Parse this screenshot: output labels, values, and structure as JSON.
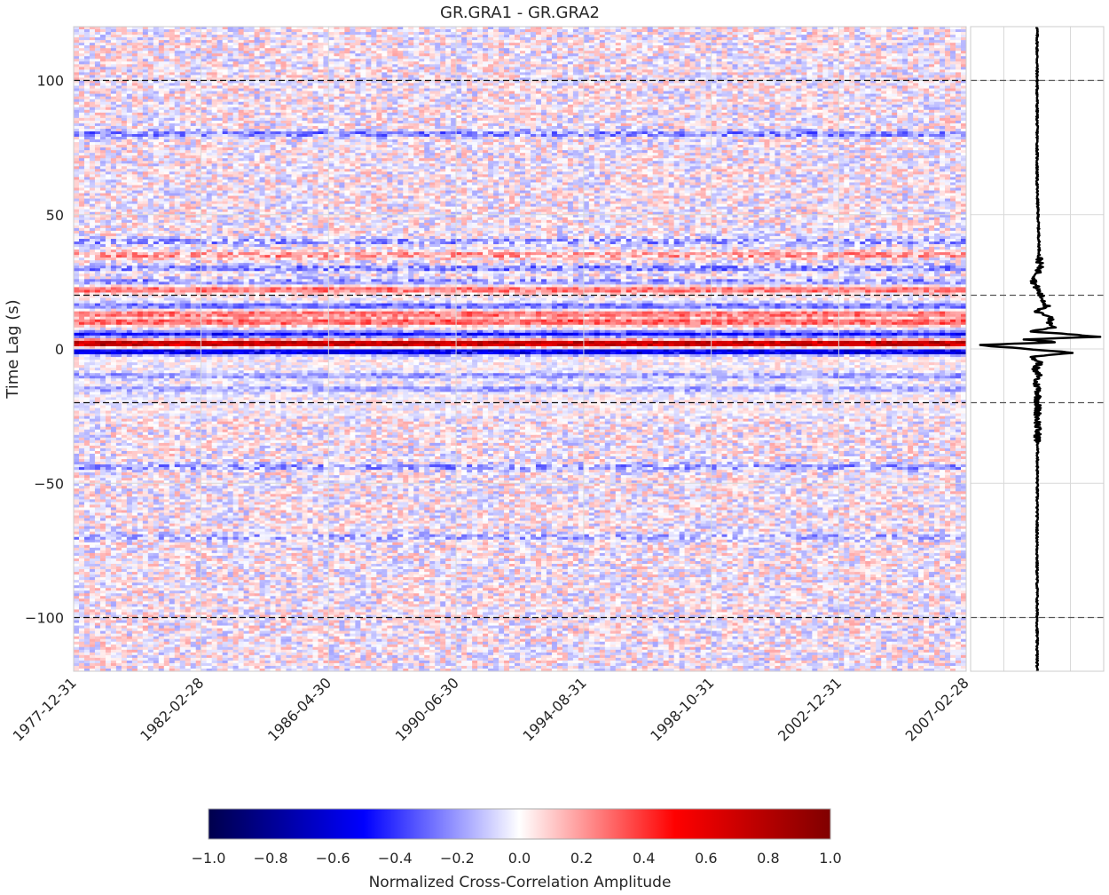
{
  "chart_data": [
    {
      "type": "heatmap",
      "title": "GR.GRA1 - GR.GRA2",
      "xlabel": "",
      "ylabel": "Time Lag (s)",
      "x_tick_labels": [
        "1977-12-31",
        "1982-02-28",
        "1986-04-30",
        "1990-06-30",
        "1994-08-31",
        "1998-10-31",
        "2002-12-31",
        "2007-02-28"
      ],
      "x_range": [
        "1977-12-31",
        "2007-02-28"
      ],
      "ylim": [
        -120,
        120
      ],
      "y_ticks": [
        100,
        50,
        0,
        -50,
        -100
      ],
      "y_tick_labels": [
        "100",
        "50",
        "0",
        "−50",
        "−100"
      ],
      "reference_lines_y": [
        100,
        20,
        -20,
        -100
      ],
      "grid": true,
      "colormap": "seismic",
      "color_range": [
        -1.0,
        1.0
      ],
      "bands": [
        {
          "lag": 2,
          "value": 0.85
        },
        {
          "lag": -1,
          "value": -0.65
        },
        {
          "lag": 5.5,
          "value": -0.45
        },
        {
          "lag": 10,
          "value": 0.35
        },
        {
          "lag": 13,
          "value": 0.3
        },
        {
          "lag": 16,
          "value": -0.3
        },
        {
          "lag": 22,
          "value": 0.3
        },
        {
          "lag": 25,
          "value": -0.2
        },
        {
          "lag": 30,
          "value": -0.25
        },
        {
          "lag": 35,
          "value": 0.2
        },
        {
          "lag": 40,
          "value": -0.2
        },
        {
          "lag": 80,
          "value": -0.25
        },
        {
          "lag": -10,
          "value": -0.2
        },
        {
          "lag": -15,
          "value": -0.2
        },
        {
          "lag": -44,
          "value": -0.2
        },
        {
          "lag": -70,
          "value": -0.15
        }
      ]
    },
    {
      "type": "line",
      "description_series": "stacked reference cross-correlation",
      "x_range": [
        -1,
        1
      ],
      "ylim": [
        -120,
        120
      ],
      "reference_lines_y": [
        100,
        20,
        -20,
        -100
      ],
      "y_ticks": [
        100,
        50,
        0,
        -50,
        -100
      ],
      "series": [
        {
          "lag": [
            -120,
            -60,
            -20,
            -15,
            -12,
            -10,
            -8,
            -5,
            -3,
            -1.5,
            -0.5,
            0.5,
            1.5,
            2.5,
            3.5,
            4.5,
            5.5,
            6.5,
            8,
            10,
            12,
            14,
            16,
            20,
            25,
            30,
            60,
            120
          ],
          "amplitude": [
            0,
            0,
            0.01,
            0.02,
            -0.03,
            0.04,
            -0.05,
            0.05,
            -0.1,
            0.55,
            0.1,
            -0.4,
            -0.9,
            0.3,
            -0.2,
            0.9,
            0.5,
            -0.1,
            0.25,
            0.18,
            0.22,
            -0.05,
            0.15,
            0.05,
            -0.05,
            0.04,
            0.0,
            0.0
          ]
        }
      ]
    },
    {
      "type": "colorbar",
      "label": "Normalized Cross-Correlation Amplitude",
      "range": [
        -1.0,
        1.0
      ],
      "tick_labels": [
        "−1.0",
        "−0.8",
        "−0.6",
        "−0.4",
        "−0.2",
        "0.0",
        "0.2",
        "0.4",
        "0.6",
        "0.8",
        "1.0"
      ]
    }
  ]
}
